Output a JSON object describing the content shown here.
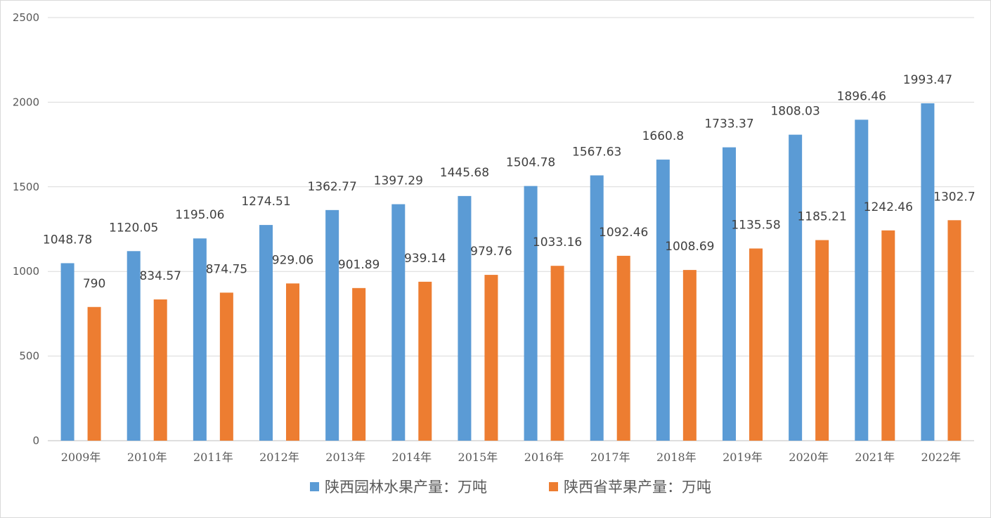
{
  "chart_data": {
    "type": "bar",
    "title": "",
    "xlabel": "",
    "ylabel": "",
    "ylim": [
      0,
      2500
    ],
    "yticks": [
      0,
      500,
      1000,
      1500,
      2000,
      2500
    ],
    "grid": true,
    "legend_position": "bottom",
    "categories": [
      "2009年",
      "2010年",
      "2011年",
      "2012年",
      "2013年",
      "2014年",
      "2015年",
      "2016年",
      "2017年",
      "2018年",
      "2019年",
      "2020年",
      "2021年",
      "2022年"
    ],
    "series": [
      {
        "name": "陕西园林水果产量：万吨",
        "color": "#5b9bd5",
        "values": [
          1048.78,
          1120.05,
          1195.06,
          1274.51,
          1362.77,
          1397.29,
          1445.68,
          1504.78,
          1567.63,
          1660.8,
          1733.37,
          1808.03,
          1896.46,
          1993.47
        ]
      },
      {
        "name": "陕西省苹果产量：万吨",
        "color": "#ed7d31",
        "values": [
          790,
          834.57,
          874.75,
          929.06,
          901.89,
          939.14,
          979.76,
          1033.16,
          1092.46,
          1008.69,
          1135.58,
          1185.21,
          1242.46,
          1302.7
        ]
      }
    ]
  }
}
